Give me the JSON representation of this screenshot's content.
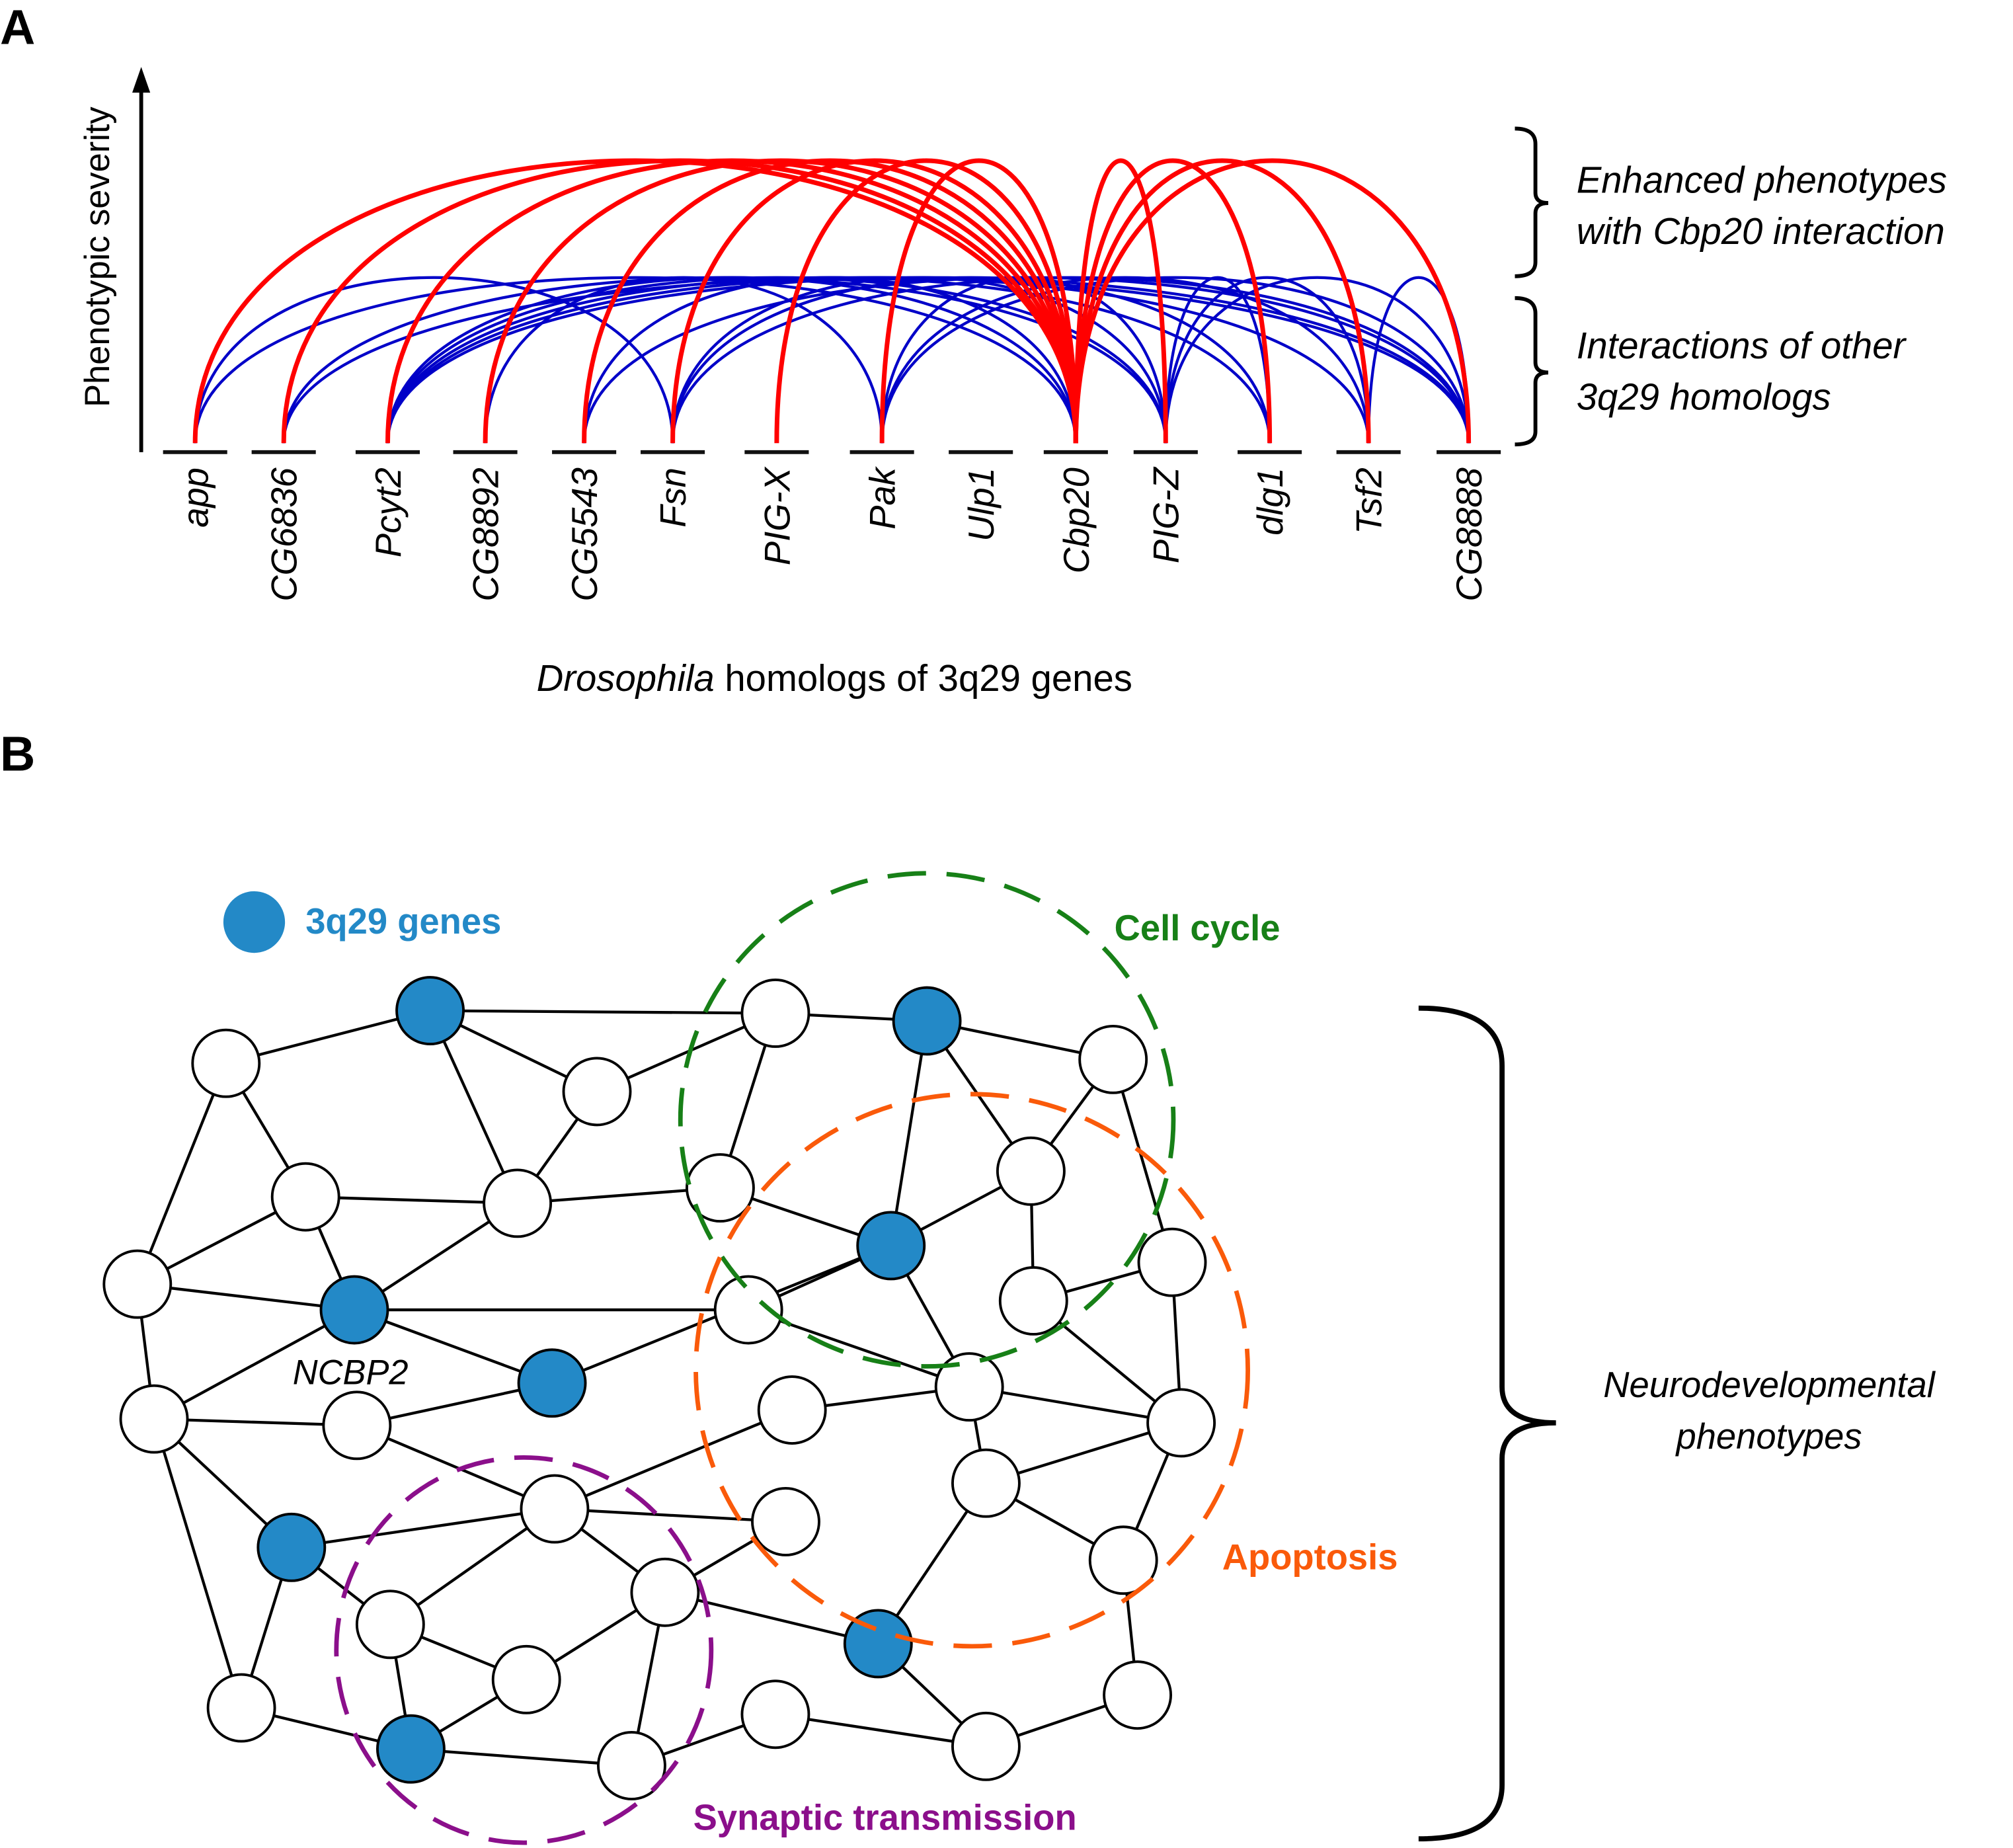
{
  "panel_a": {
    "letter": "A",
    "y_axis_label": "Phenotypic severity",
    "x_axis_label_italic": "Drosophila",
    "x_axis_label_rest": " homologs of 3q29 genes",
    "genes": [
      "app",
      "CG6836",
      "Pcyt2",
      "CG8892",
      "CG5543",
      "Fsn",
      "PIG-X",
      "Pak",
      "Ulp1",
      "Cbp20",
      "PIG-Z",
      "dlg1",
      "Tsf2",
      "CG8888"
    ],
    "bracket_top_line1": "Enhanced phenotypes",
    "bracket_top_line2": "with Cbp20 interaction",
    "bracket_bottom_line1": "Interactions of other",
    "bracket_bottom_line2": "3q29 homologs",
    "enhanced_color": "#ff0000",
    "other_color": "#0000c8",
    "enhanced_interactions": [
      [
        "app",
        "Cbp20"
      ],
      [
        "CG6836",
        "Cbp20"
      ],
      [
        "Pcyt2",
        "Cbp20"
      ],
      [
        "CG8892",
        "Cbp20"
      ],
      [
        "CG5543",
        "Cbp20"
      ],
      [
        "Fsn",
        "Cbp20"
      ],
      [
        "PIG-X",
        "Cbp20"
      ],
      [
        "Pak",
        "Cbp20"
      ],
      [
        "Cbp20",
        "PIG-Z"
      ],
      [
        "Cbp20",
        "dlg1"
      ],
      [
        "Cbp20",
        "Tsf2"
      ],
      [
        "Cbp20",
        "CG8888"
      ]
    ],
    "other_interactions": [
      [
        "app",
        "Fsn"
      ],
      [
        "app",
        "Cbp20"
      ],
      [
        "CG6836",
        "PIG-Z"
      ],
      [
        "CG6836",
        "CG8888"
      ],
      [
        "Pcyt2",
        "Cbp20"
      ],
      [
        "Pcyt2",
        "PIG-Z"
      ],
      [
        "Pcyt2",
        "Tsf2"
      ],
      [
        "Pcyt2",
        "CG8888"
      ],
      [
        "Pcyt2",
        "dlg1"
      ],
      [
        "CG8892",
        "Pak"
      ],
      [
        "CG5543",
        "CG8888"
      ],
      [
        "CG5543",
        "Cbp20"
      ],
      [
        "Fsn",
        "PIG-Z"
      ],
      [
        "Fsn",
        "CG8888"
      ],
      [
        "Fsn",
        "dlg1"
      ],
      [
        "Pak",
        "PIG-Z"
      ],
      [
        "Pak",
        "CG8888"
      ],
      [
        "Pak",
        "Tsf2"
      ],
      [
        "PIG-Z",
        "dlg1"
      ],
      [
        "PIG-Z",
        "Tsf2"
      ],
      [
        "PIG-Z",
        "CG8888"
      ],
      [
        "Tsf2",
        "CG8888"
      ]
    ]
  },
  "panel_b": {
    "letter": "B",
    "legend_label": "3q29 genes",
    "gene_color": "#2389c7",
    "node_label": "NCBP2",
    "clusters": {
      "cell_cycle": {
        "label": "Cell cycle",
        "color": "#178017"
      },
      "apoptosis": {
        "label": "Apoptosis",
        "color": "#fa5a0a"
      },
      "synaptic": {
        "label": "Synaptic transmission",
        "color": "#8b0f8b"
      }
    },
    "bracket_line1": "Neurodevelopmental",
    "bracket_line2": "phenotypes"
  }
}
